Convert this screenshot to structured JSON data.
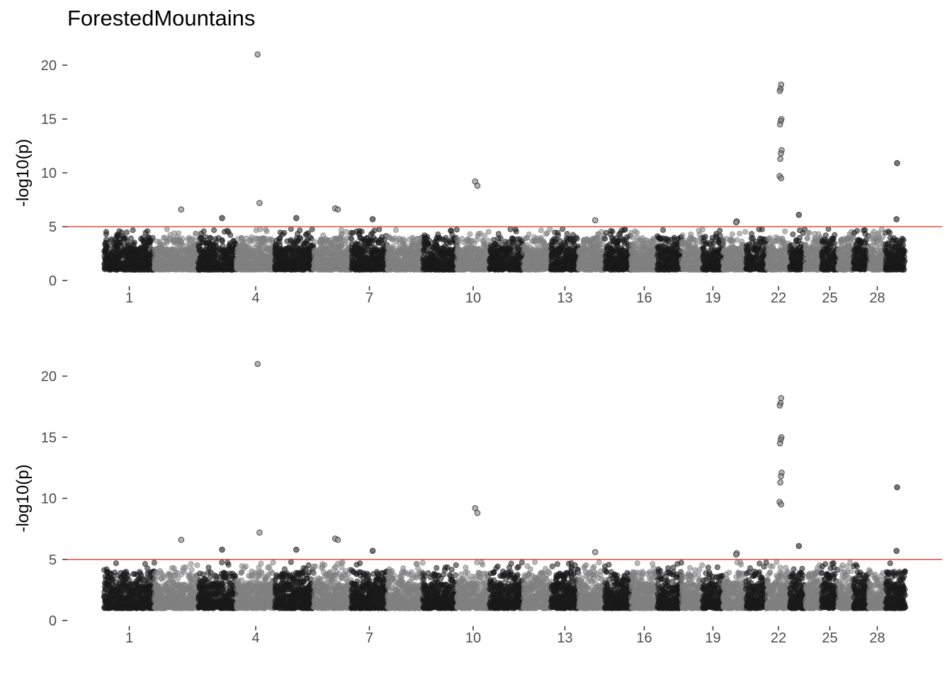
{
  "title": "ForestedMountains",
  "colors": {
    "dark": "#1a1a1a",
    "light": "#808080",
    "threshold": "#e8483d",
    "tick_text": "#4d4d4d"
  },
  "chart_data": [
    {
      "type": "scatter",
      "subtype": "manhattan",
      "ylabel": "-log10(p)",
      "ylim": [
        0,
        21.5
      ],
      "yticks": [
        0,
        5,
        10,
        15,
        20
      ],
      "threshold": 5,
      "xlabel": "",
      "x_tick_labels": [
        "1",
        "4",
        "7",
        "10",
        "13",
        "16",
        "19",
        "22",
        "25",
        "28"
      ],
      "chromosomes": [
        1,
        2,
        3,
        4,
        5,
        6,
        7,
        8,
        9,
        10,
        11,
        12,
        13,
        14,
        15,
        16,
        17,
        18,
        19,
        20,
        21,
        22,
        23,
        24,
        25,
        26,
        27,
        28,
        29
      ],
      "chromosome_colors": "alternating dark/light",
      "baseline_range": [
        1.0,
        3.0
      ],
      "top_hits": [
        {
          "chr": 4,
          "y": 21.0
        },
        {
          "chr": 22,
          "y": 18.2
        },
        {
          "chr": 22,
          "y": 17.8
        },
        {
          "chr": 22,
          "y": 17.6
        },
        {
          "chr": 22,
          "y": 15.0
        },
        {
          "chr": 22,
          "y": 14.8
        },
        {
          "chr": 22,
          "y": 14.5
        },
        {
          "chr": 22,
          "y": 12.1
        },
        {
          "chr": 22,
          "y": 11.8
        },
        {
          "chr": 22,
          "y": 11.3
        },
        {
          "chr": 22,
          "y": 9.7
        },
        {
          "chr": 22,
          "y": 9.5
        },
        {
          "chr": 29,
          "y": 10.9
        },
        {
          "chr": 10,
          "y": 9.2
        },
        {
          "chr": 10,
          "y": 8.8
        },
        {
          "chr": 4,
          "y": 7.2
        },
        {
          "chr": 6,
          "y": 6.7
        },
        {
          "chr": 6,
          "y": 6.6
        },
        {
          "chr": 2,
          "y": 6.6
        },
        {
          "chr": 23,
          "y": 6.1
        },
        {
          "chr": 5,
          "y": 5.8
        },
        {
          "chr": 3,
          "y": 5.8
        },
        {
          "chr": 7,
          "y": 5.7
        },
        {
          "chr": 29,
          "y": 5.7
        },
        {
          "chr": 14,
          "y": 5.6
        },
        {
          "chr": 20,
          "y": 5.5
        },
        {
          "chr": 20,
          "y": 5.4
        }
      ]
    },
    {
      "type": "scatter",
      "subtype": "manhattan",
      "ylabel": "-log10(p)",
      "ylim": [
        0,
        21.5
      ],
      "yticks": [
        0,
        5,
        10,
        15,
        20
      ],
      "threshold": 5,
      "xlabel": "",
      "x_tick_labels": [
        "1",
        "4",
        "7",
        "10",
        "13",
        "16",
        "19",
        "22",
        "25",
        "28"
      ],
      "chromosomes": [
        1,
        2,
        3,
        4,
        5,
        6,
        7,
        8,
        9,
        10,
        11,
        12,
        13,
        14,
        15,
        16,
        17,
        18,
        19,
        20,
        21,
        22,
        23,
        24,
        25,
        26,
        27,
        28,
        29
      ],
      "chromosome_colors": "alternating dark/light",
      "baseline_range": [
        1.0,
        3.0
      ],
      "top_hits": [
        {
          "chr": 4,
          "y": 21.0
        },
        {
          "chr": 22,
          "y": 18.2
        },
        {
          "chr": 22,
          "y": 17.8
        },
        {
          "chr": 22,
          "y": 17.6
        },
        {
          "chr": 22,
          "y": 15.0
        },
        {
          "chr": 22,
          "y": 14.8
        },
        {
          "chr": 22,
          "y": 14.5
        },
        {
          "chr": 22,
          "y": 12.1
        },
        {
          "chr": 22,
          "y": 11.8
        },
        {
          "chr": 22,
          "y": 11.3
        },
        {
          "chr": 22,
          "y": 9.7
        },
        {
          "chr": 22,
          "y": 9.5
        },
        {
          "chr": 29,
          "y": 10.9
        },
        {
          "chr": 10,
          "y": 9.2
        },
        {
          "chr": 10,
          "y": 8.8
        },
        {
          "chr": 4,
          "y": 7.2
        },
        {
          "chr": 6,
          "y": 6.7
        },
        {
          "chr": 6,
          "y": 6.6
        },
        {
          "chr": 2,
          "y": 6.6
        },
        {
          "chr": 23,
          "y": 6.1
        },
        {
          "chr": 5,
          "y": 5.8
        },
        {
          "chr": 3,
          "y": 5.8
        },
        {
          "chr": 7,
          "y": 5.7
        },
        {
          "chr": 29,
          "y": 5.7
        },
        {
          "chr": 14,
          "y": 5.6
        },
        {
          "chr": 20,
          "y": 5.5
        },
        {
          "chr": 20,
          "y": 5.4
        }
      ]
    }
  ]
}
